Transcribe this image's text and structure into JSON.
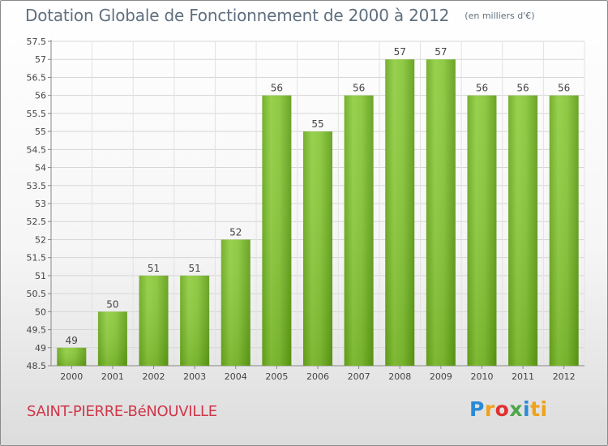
{
  "chart_data": {
    "type": "bar",
    "title": "Dotation Globale de Fonctionnement de 2000 à 2012",
    "subtitle": "(en milliers d'€)",
    "categories": [
      "2000",
      "2001",
      "2002",
      "2003",
      "2004",
      "2005",
      "2006",
      "2007",
      "2008",
      "2009",
      "2010",
      "2011",
      "2012"
    ],
    "values": [
      49,
      50,
      51,
      51,
      52,
      56,
      55,
      56,
      57,
      57,
      56,
      56,
      56
    ],
    "ylim": [
      48.5,
      57.5
    ],
    "yticks": [
      "48.5",
      "49",
      "49.5",
      "50",
      "50.5",
      "51",
      "51.5",
      "52",
      "52.5",
      "53",
      "53.5",
      "54",
      "54.5",
      "55",
      "55.5",
      "56",
      "56.5",
      "57",
      "57.5"
    ],
    "grid": true,
    "bar_color": "#7dbf2e"
  },
  "footer": {
    "commune": "SAINT-PIERRE-BéNOUVILLE",
    "brand": [
      "P",
      "r",
      "o",
      "x",
      "i",
      "ti"
    ]
  }
}
